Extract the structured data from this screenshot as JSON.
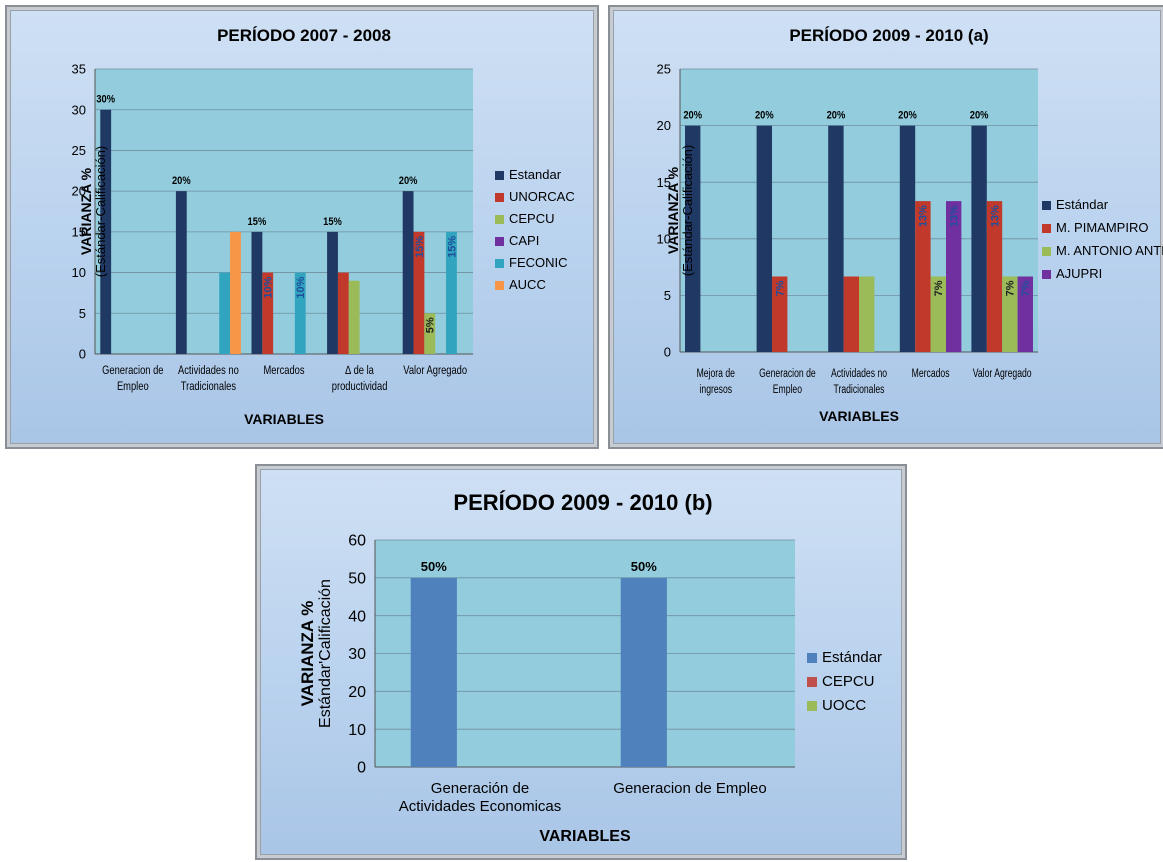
{
  "chart_data": [
    {
      "type": "bar",
      "title": "PERÍODO 2007 - 2008",
      "ylabel": "VARIANZA %",
      "ylabel_sub": "(Estándar-Calificación)",
      "xlabel": "VARIABLES",
      "ylim": [
        0,
        35
      ],
      "yticks": [
        "0",
        "5",
        "10",
        "15",
        "20",
        "25",
        "30",
        "35"
      ],
      "legend_position": "right",
      "grid": true,
      "categories": [
        [
          "Generacion de",
          "Empleo"
        ],
        [
          "Actividades no",
          "Tradicionales"
        ],
        [
          "Mercados"
        ],
        [
          "∆ de la",
          "productividad"
        ],
        [
          "Valor Agregado"
        ]
      ],
      "series": [
        {
          "name": "Estandar",
          "color": "#1f3864",
          "values": [
            30,
            20,
            15,
            15,
            20
          ],
          "labels": [
            "30%",
            "20%",
            "15%",
            "15%",
            "20%"
          ]
        },
        {
          "name": "UNORCAC",
          "color": "#c0392b",
          "values": [
            0,
            0,
            10,
            10,
            15
          ],
          "labels": [
            "",
            "",
            "10%",
            "",
            "15%"
          ]
        },
        {
          "name": "CEPCU",
          "color": "#9bbb59",
          "values": [
            0,
            0,
            0,
            9,
            5
          ],
          "labels": [
            "",
            "",
            "",
            "",
            "5%"
          ]
        },
        {
          "name": "CAPI",
          "color": "#7030a0",
          "values": [
            0,
            0,
            0,
            0,
            0
          ],
          "labels": [
            "",
            "",
            "",
            "",
            ""
          ]
        },
        {
          "name": "FECONIC",
          "color": "#31a5c0",
          "values": [
            0,
            10,
            10,
            0,
            15
          ],
          "labels": [
            "",
            "",
            "10%",
            "",
            "15%"
          ]
        },
        {
          "name": "AUCC",
          "color": "#f79646",
          "values": [
            0,
            15,
            0,
            0,
            0
          ],
          "labels": [
            "",
            "",
            "",
            "",
            ""
          ]
        }
      ]
    },
    {
      "type": "bar",
      "title": "PERÍODO 2009 - 2010 (a)",
      "ylabel": "VARIANZA %",
      "ylabel_sub": "(Estándar-Calificación)",
      "xlabel": "VARIABLES",
      "ylim": [
        0,
        25
      ],
      "yticks": [
        "0",
        "5",
        "10",
        "15",
        "20",
        "25"
      ],
      "legend_position": "right",
      "grid": true,
      "categories": [
        [
          "Mejora de",
          "ingresos"
        ],
        [
          "Generacion de",
          "Empleo"
        ],
        [
          "Actividades no",
          "Tradicionales"
        ],
        [
          "Mercados"
        ],
        [
          "Valor Agregado"
        ]
      ],
      "series": [
        {
          "name": "Estándar",
          "color": "#1f3864",
          "values": [
            20,
            20,
            20,
            20,
            20
          ],
          "labels": [
            "20%",
            "20%",
            "20%",
            "20%",
            "20%"
          ]
        },
        {
          "name": "M. PIMAMPIRO",
          "color": "#c0392b",
          "values": [
            0,
            6.67,
            6.67,
            13.33,
            13.33
          ],
          "labels": [
            "",
            "7%",
            "",
            "13%",
            "13%"
          ]
        },
        {
          "name": "M. ANTONIO ANTE",
          "color": "#9bbb59",
          "values": [
            0,
            0,
            6.67,
            6.67,
            6.67
          ],
          "labels": [
            "",
            "",
            "",
            "7%",
            "7%"
          ]
        },
        {
          "name": "AJUPRI",
          "color": "#7030a0",
          "values": [
            0,
            0,
            0,
            13.33,
            6.67
          ],
          "labels": [
            "",
            "",
            "",
            "13%",
            "7%"
          ]
        }
      ]
    },
    {
      "type": "bar",
      "title": "PERÍODO 2009 - 2010 (b)",
      "ylabel": "VARIANZA %",
      "ylabel_sub": "Estándar'Calificación",
      "xlabel": "VARIABLES",
      "ylim": [
        0,
        60
      ],
      "yticks": [
        "0",
        "10",
        "20",
        "30",
        "40",
        "50",
        "60"
      ],
      "legend_position": "right",
      "grid": true,
      "categories": [
        [
          "Generación de",
          "Actividades Economicas"
        ],
        [
          "Generacion de Empleo"
        ]
      ],
      "series": [
        {
          "name": "Estándar",
          "color": "#4f81bd",
          "values": [
            50,
            50
          ],
          "labels": [
            "50%",
            "50%"
          ]
        },
        {
          "name": "CEPCU",
          "color": "#c0504d",
          "values": [
            0,
            0
          ],
          "labels": [
            "",
            ""
          ]
        },
        {
          "name": "UOCC",
          "color": "#9bbb59",
          "values": [
            0,
            0
          ],
          "labels": [
            "",
            ""
          ]
        }
      ]
    }
  ]
}
